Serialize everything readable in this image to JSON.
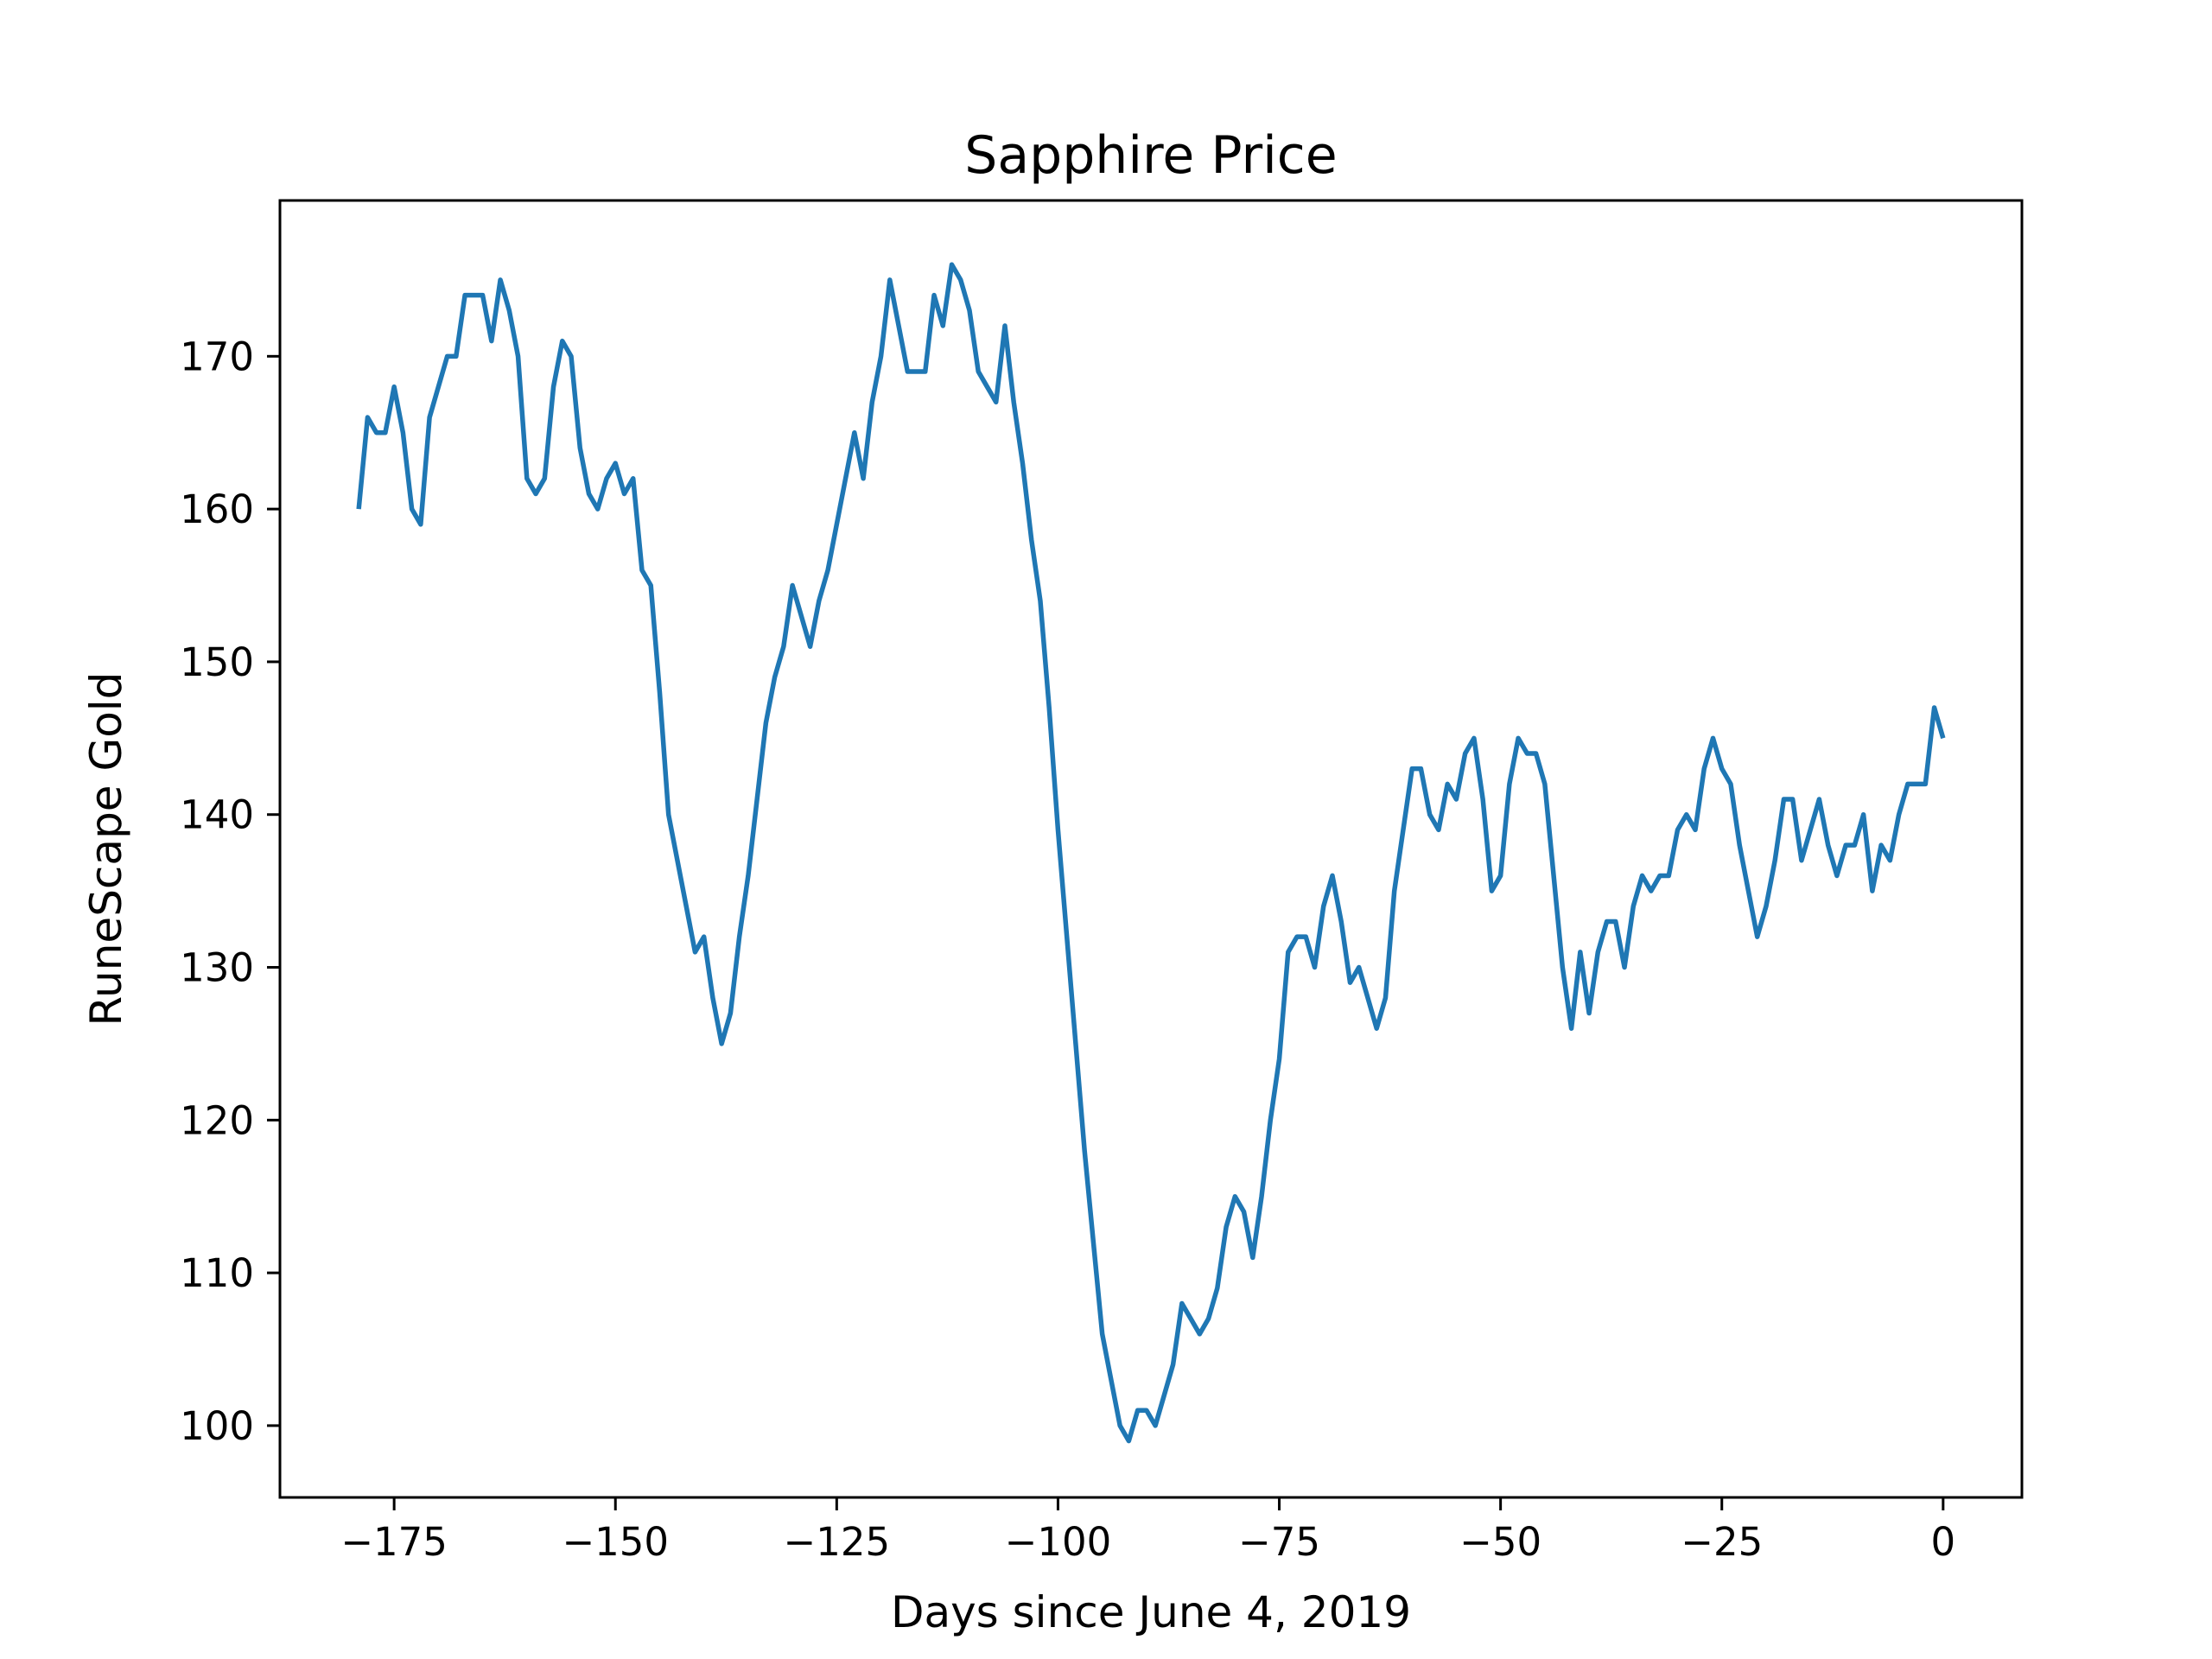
{
  "chart_data": {
    "type": "line",
    "title": "Sapphire Price",
    "xlabel": "Days since June 4, 2019",
    "ylabel": "RuneScape Gold",
    "xlim": [
      -187.9,
      8.9
    ],
    "ylim": [
      95.3,
      180.2
    ],
    "xticks": [
      -175,
      -150,
      -125,
      -100,
      -75,
      -50,
      -25,
      0
    ],
    "xtick_labels": [
      "−175",
      "−150",
      "−125",
      "−100",
      "−75",
      "−50",
      "−25",
      "0"
    ],
    "yticks": [
      100,
      110,
      120,
      130,
      140,
      150,
      160,
      170
    ],
    "ytick_labels": [
      "100",
      "110",
      "120",
      "130",
      "140",
      "150",
      "160",
      "170"
    ],
    "grid": false,
    "legend": "none",
    "series": [
      {
        "color": "#1f77b4",
        "x": [
          -179,
          -178,
          -177,
          -176,
          -175,
          -174,
          -173,
          -172,
          -171,
          -170,
          -169,
          -168,
          -167,
          -166,
          -165,
          -164,
          -163,
          -162,
          -161,
          -160,
          -159,
          -158,
          -157,
          -156,
          -155,
          -154,
          -153,
          -152,
          -151,
          -150,
          -149,
          -148,
          -147,
          -146,
          -145,
          -144,
          -143,
          -142,
          -141,
          -140,
          -139,
          -138,
          -137,
          -136,
          -135,
          -134,
          -133,
          -132,
          -131,
          -130,
          -129,
          -128,
          -127,
          -126,
          -125,
          -124,
          -123,
          -122,
          -121,
          -120,
          -119,
          -118,
          -117,
          -116,
          -115,
          -114,
          -113,
          -112,
          -111,
          -110,
          -109,
          -108,
          -107,
          -106,
          -105,
          -104,
          -103,
          -102,
          -101,
          -100,
          -99,
          -98,
          -97,
          -96,
          -95,
          -94,
          -93,
          -92,
          -91,
          -90,
          -89,
          -88,
          -87,
          -86,
          -85,
          -84,
          -83,
          -82,
          -81,
          -80,
          -79,
          -78,
          -77,
          -76,
          -75,
          -74,
          -73,
          -72,
          -71,
          -70,
          -69,
          -68,
          -67,
          -66,
          -65,
          -64,
          -63,
          -62,
          -61,
          -60,
          -59,
          -58,
          -57,
          -56,
          -55,
          -54,
          -53,
          -52,
          -51,
          -50,
          -49,
          -48,
          -47,
          -46,
          -45,
          -44,
          -43,
          -42,
          -41,
          -40,
          -39,
          -38,
          -37,
          -36,
          -35,
          -34,
          -33,
          -32,
          -31,
          -30,
          -29,
          -28,
          -27,
          -26,
          -25,
          -24,
          -23,
          -22,
          -21,
          -20,
          -19,
          -18,
          -17,
          -16,
          -15,
          -14,
          -13,
          -12,
          -11,
          -10,
          -9,
          -8,
          -7,
          -6,
          -5,
          -4,
          -3,
          -2,
          -1,
          0
        ],
        "y": [
          160,
          166,
          165,
          165,
          168,
          165,
          160,
          159,
          166,
          168,
          170,
          170,
          174,
          174,
          174,
          171,
          175,
          173,
          170,
          162,
          161,
          162,
          168,
          171,
          170,
          164,
          161,
          160,
          162,
          163,
          161,
          162,
          156,
          155,
          148,
          140,
          137,
          134,
          131,
          132,
          128,
          125,
          127,
          132,
          136,
          141,
          146,
          149,
          151,
          155,
          153,
          151,
          154,
          156,
          159,
          162,
          165,
          162,
          167,
          170,
          175,
          172,
          169,
          169,
          169,
          174,
          172,
          176,
          175,
          173,
          169,
          168,
          167,
          172,
          167,
          163,
          158,
          154,
          147,
          139,
          132,
          125,
          118,
          112,
          106,
          103,
          100,
          99,
          101,
          101,
          100,
          102,
          104,
          108,
          107,
          106,
          107,
          109,
          113,
          115,
          114,
          111,
          115,
          120,
          124,
          131,
          132,
          132,
          130,
          134,
          136,
          133,
          129,
          130,
          128,
          126,
          128,
          135,
          139,
          143,
          143,
          140,
          139,
          142,
          141,
          144,
          145,
          141,
          135,
          136,
          142,
          145,
          144,
          144,
          142,
          136,
          130,
          126,
          131,
          127,
          131,
          133,
          133,
          130,
          134,
          136,
          135,
          136,
          136,
          139,
          140,
          139,
          143,
          145,
          143,
          142,
          138,
          135,
          132,
          134,
          137,
          141,
          141,
          137,
          139,
          141,
          138,
          136,
          138,
          138,
          140,
          135,
          138,
          137,
          140,
          142,
          142,
          142,
          147,
          145
        ]
      }
    ]
  }
}
